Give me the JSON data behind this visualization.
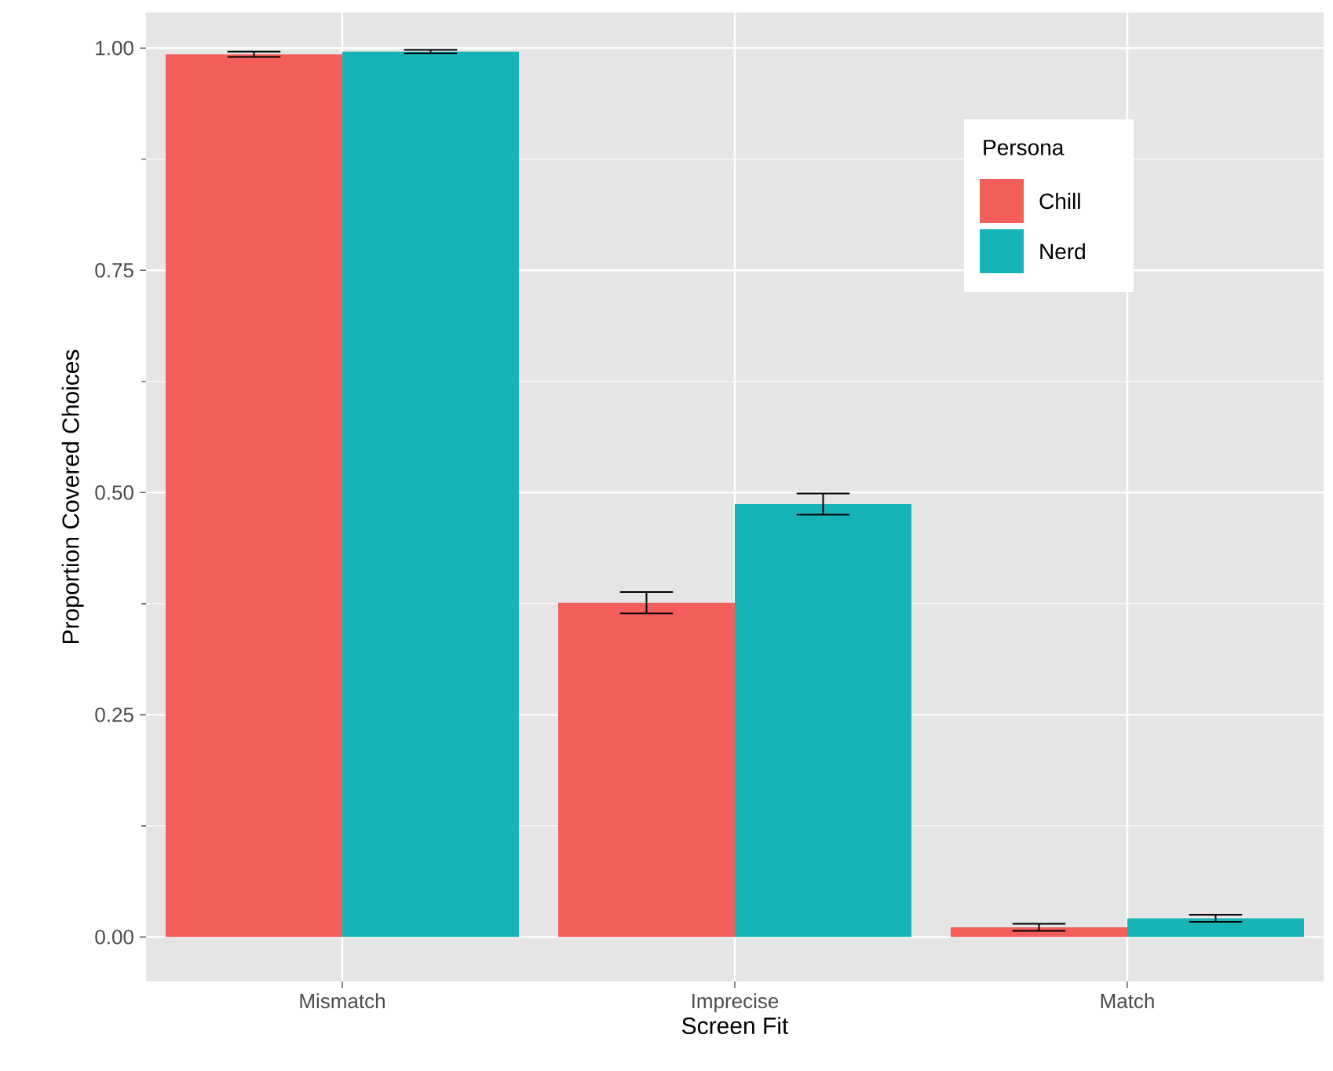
{
  "chart_data": {
    "type": "bar",
    "xlabel": "Screen Fit",
    "ylabel": "Proportion Covered Choices",
    "legend_title": "Persona",
    "categories": [
      "Mismatch",
      "Imprecise",
      "Match"
    ],
    "series": [
      {
        "name": "Chill",
        "color": "#f35e5a",
        "values": [
          0.993,
          0.376,
          0.011
        ],
        "errors": [
          0.003,
          0.012,
          0.004
        ]
      },
      {
        "name": "Nerd",
        "color": "#17b3b7",
        "values": [
          0.996,
          0.487,
          0.021
        ],
        "errors": [
          0.002,
          0.012,
          0.004
        ]
      }
    ],
    "ylim": [
      -0.05,
      1.04
    ],
    "yticks": [
      {
        "value": 0,
        "label": "0.00"
      },
      {
        "value": 0.25,
        "label": "0.25"
      },
      {
        "value": 0.5,
        "label": "0.50"
      },
      {
        "value": 0.75,
        "label": "0.75"
      },
      {
        "value": 1,
        "label": "1.00"
      }
    ],
    "grid": true,
    "legend": "top right"
  }
}
